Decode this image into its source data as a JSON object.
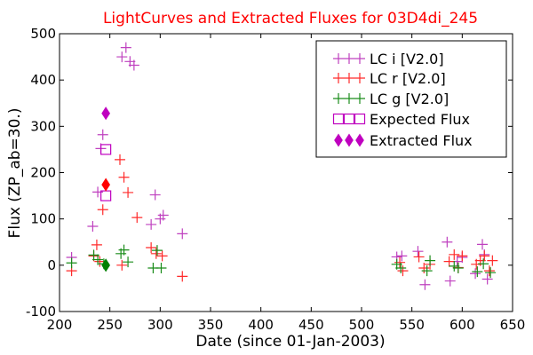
{
  "chart_data": {
    "type": "scatter",
    "title": "LightCurves and Extracted Fluxes for 03D4di_245",
    "xlabel": "Date (since 01-Jan-2003)",
    "ylabel": "Flux (ZP_ab=30.)",
    "xlim": [
      200,
      650
    ],
    "ylim": [
      -100,
      500
    ],
    "xticks": [
      200,
      250,
      300,
      350,
      400,
      450,
      500,
      550,
      600,
      650
    ],
    "yticks": [
      -100,
      0,
      100,
      200,
      300,
      400,
      500
    ],
    "grid": false,
    "legend_position": "top-right",
    "colors": {
      "title": "#ff0000",
      "lc_i": "#bf40bf",
      "lc_r": "#ff2a2a",
      "lc_g": "#1a8c1a",
      "expected": "#bf00bf",
      "extracted_i": "#bf00bf",
      "extracted_r": "#ff0000",
      "extracted_g": "#008000"
    },
    "series": [
      {
        "name": "LC i [V2.0]",
        "marker": "plus",
        "color_key": "lc_i",
        "x": [
          212,
          233,
          238,
          241,
          243,
          262,
          266,
          270,
          274,
          291,
          295,
          300,
          303,
          322,
          535,
          540,
          556,
          563,
          585,
          588,
          595,
          600,
          613,
          620,
          622,
          625
        ],
        "y": [
          17,
          84,
          158,
          252,
          282,
          450,
          470,
          440,
          432,
          88,
          152,
          100,
          108,
          68,
          18,
          20,
          30,
          -42,
          50,
          -34,
          8,
          17,
          -18,
          45,
          23,
          -30
        ]
      },
      {
        "name": "LC r [V2.0]",
        "marker": "plus",
        "color_key": "lc_r",
        "x": [
          212,
          234,
          237,
          240,
          243,
          260,
          264,
          268,
          277,
          291,
          296,
          302,
          322,
          538,
          541,
          557,
          562,
          568,
          587,
          592,
          596,
          600,
          614,
          618,
          622,
          627,
          630
        ],
        "y": [
          -12,
          20,
          44,
          8,
          120,
          228,
          190,
          157,
          103,
          38,
          25,
          20,
          -24,
          6,
          -12,
          18,
          -6,
          2,
          8,
          23,
          -5,
          20,
          2,
          10,
          20,
          -12,
          10
        ],
        "extra_markers": [
          {
            "x": 262,
            "y": 0
          }
        ]
      },
      {
        "name": "LC g [V2.0]",
        "marker": "plus",
        "color_key": "lc_g",
        "x": [
          212,
          234,
          238,
          244,
          261,
          264,
          268,
          293,
          297,
          301,
          535,
          539,
          565,
          568,
          592,
          596,
          615,
          621,
          628
        ],
        "y": [
          5,
          22,
          12,
          3,
          25,
          33,
          7,
          -6,
          32,
          -6,
          2,
          -6,
          -12,
          10,
          -2,
          -6,
          -14,
          3,
          -16
        ]
      },
      {
        "name": "Expected Flux",
        "marker": "square",
        "color_key": "expected",
        "x": [
          246,
          246
        ],
        "y": [
          250,
          150
        ]
      },
      {
        "name": "Extracted Flux",
        "marker": "diamond",
        "points": [
          {
            "x": 246,
            "y": 328,
            "color_key": "extracted_i"
          },
          {
            "x": 246,
            "y": 174,
            "color_key": "extracted_r"
          },
          {
            "x": 246,
            "y": 0,
            "color_key": "extracted_g"
          }
        ]
      }
    ],
    "legend": [
      {
        "label": "LC i [V2.0]",
        "marker": "plus",
        "color_key": "lc_i"
      },
      {
        "label": "LC r [V2.0]",
        "marker": "plus",
        "color_key": "lc_r"
      },
      {
        "label": "LC g [V2.0]",
        "marker": "plus",
        "color_key": "lc_g"
      },
      {
        "label": "Expected Flux",
        "marker": "square",
        "color_key": "expected"
      },
      {
        "label": "Extracted Flux",
        "marker": "diamond",
        "color_key": "extracted_i"
      }
    ]
  }
}
